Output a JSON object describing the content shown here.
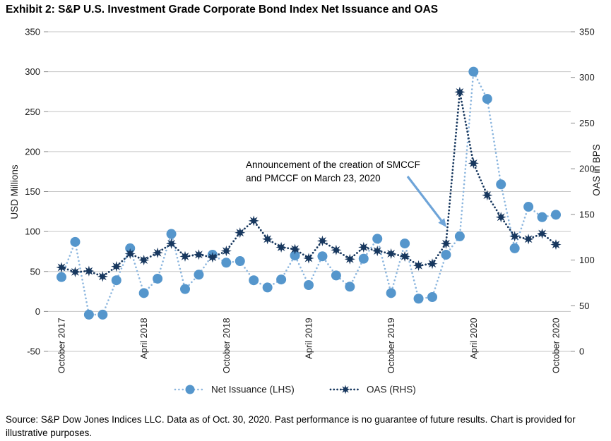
{
  "title": "Exhibit 2: S&P U.S. Investment Grade Corporate Bond Index Net Issuance and OAS",
  "footer": "Source: S&P Dow Jones Indices LLC. Data as of Oct. 30, 2020. Past performance is no guarantee of future results. Chart is provided for illustrative purposes.",
  "chart_data": {
    "type": "line",
    "x": [
      "Oct 2017",
      "Nov 2017",
      "Dec 2017",
      "Jan 2018",
      "Feb 2018",
      "Mar 2018",
      "Apr 2018",
      "May 2018",
      "Jun 2018",
      "Jul 2018",
      "Aug 2018",
      "Sep 2018",
      "Oct 2018",
      "Nov 2018",
      "Dec 2018",
      "Jan 2019",
      "Feb 2019",
      "Mar 2019",
      "Apr 2019",
      "May 2019",
      "Jun 2019",
      "Jul 2019",
      "Aug 2019",
      "Sep 2019",
      "Oct 2019",
      "Nov 2019",
      "Dec 2019",
      "Jan 2020",
      "Feb 2020",
      "Mar 2020",
      "Apr 2020",
      "May 2020",
      "Jun 2020",
      "Jul 2020",
      "Aug 2020",
      "Sep 2020",
      "Oct 2020"
    ],
    "x_ticks": [
      {
        "index": 0,
        "label": "October 2017"
      },
      {
        "index": 6,
        "label": "April 2018"
      },
      {
        "index": 12,
        "label": "October 2018"
      },
      {
        "index": 18,
        "label": "April 2019"
      },
      {
        "index": 24,
        "label": "October 2019"
      },
      {
        "index": 30,
        "label": "April 2020"
      },
      {
        "index": 36,
        "label": "October 2020"
      }
    ],
    "series": [
      {
        "name": "Net Issuance (LHS)",
        "axis": "left",
        "marker": "circle",
        "values": [
          43,
          87,
          -4,
          -4,
          39,
          79,
          23,
          41,
          97,
          28,
          46,
          71,
          61,
          63,
          39,
          30,
          40,
          70,
          33,
          69,
          45,
          31,
          66,
          91,
          23,
          85,
          16,
          18,
          71,
          94,
          300,
          266,
          159,
          79,
          131,
          118,
          121
        ]
      },
      {
        "name": "OAS (RHS)",
        "axis": "right",
        "marker": "star",
        "values": [
          92,
          87,
          88,
          82,
          93,
          107,
          100,
          108,
          118,
          104,
          106,
          103,
          110,
          130,
          143,
          123,
          114,
          112,
          102,
          121,
          111,
          101,
          114,
          110,
          107,
          104,
          94,
          96,
          118,
          284,
          206,
          171,
          147,
          126,
          123,
          129,
          117
        ]
      }
    ],
    "left_axis": {
      "label": "USD Millions",
      "min": -50,
      "max": 350,
      "ticks": [
        350,
        300,
        250,
        200,
        150,
        100,
        50,
        0,
        -50
      ]
    },
    "right_axis": {
      "label": "OAS in BPS",
      "min": 0,
      "max": 350,
      "ticks": [
        350,
        300,
        250,
        200,
        150,
        100,
        50,
        0
      ]
    },
    "annotation": {
      "lines": [
        "Announcement of the creation of SMCCF",
        "and PMCCF on March 23, 2020"
      ]
    },
    "grid": true,
    "legend_position": "bottom",
    "colors": {
      "net_issuance_marker": "#5596CC",
      "net_issuance_line": "#8AB5DE",
      "oas": "#17375E",
      "grid": "#C6C6C6",
      "axis_text": "#1a1a1a",
      "annotation_arrow": "#6EA4D8"
    }
  }
}
